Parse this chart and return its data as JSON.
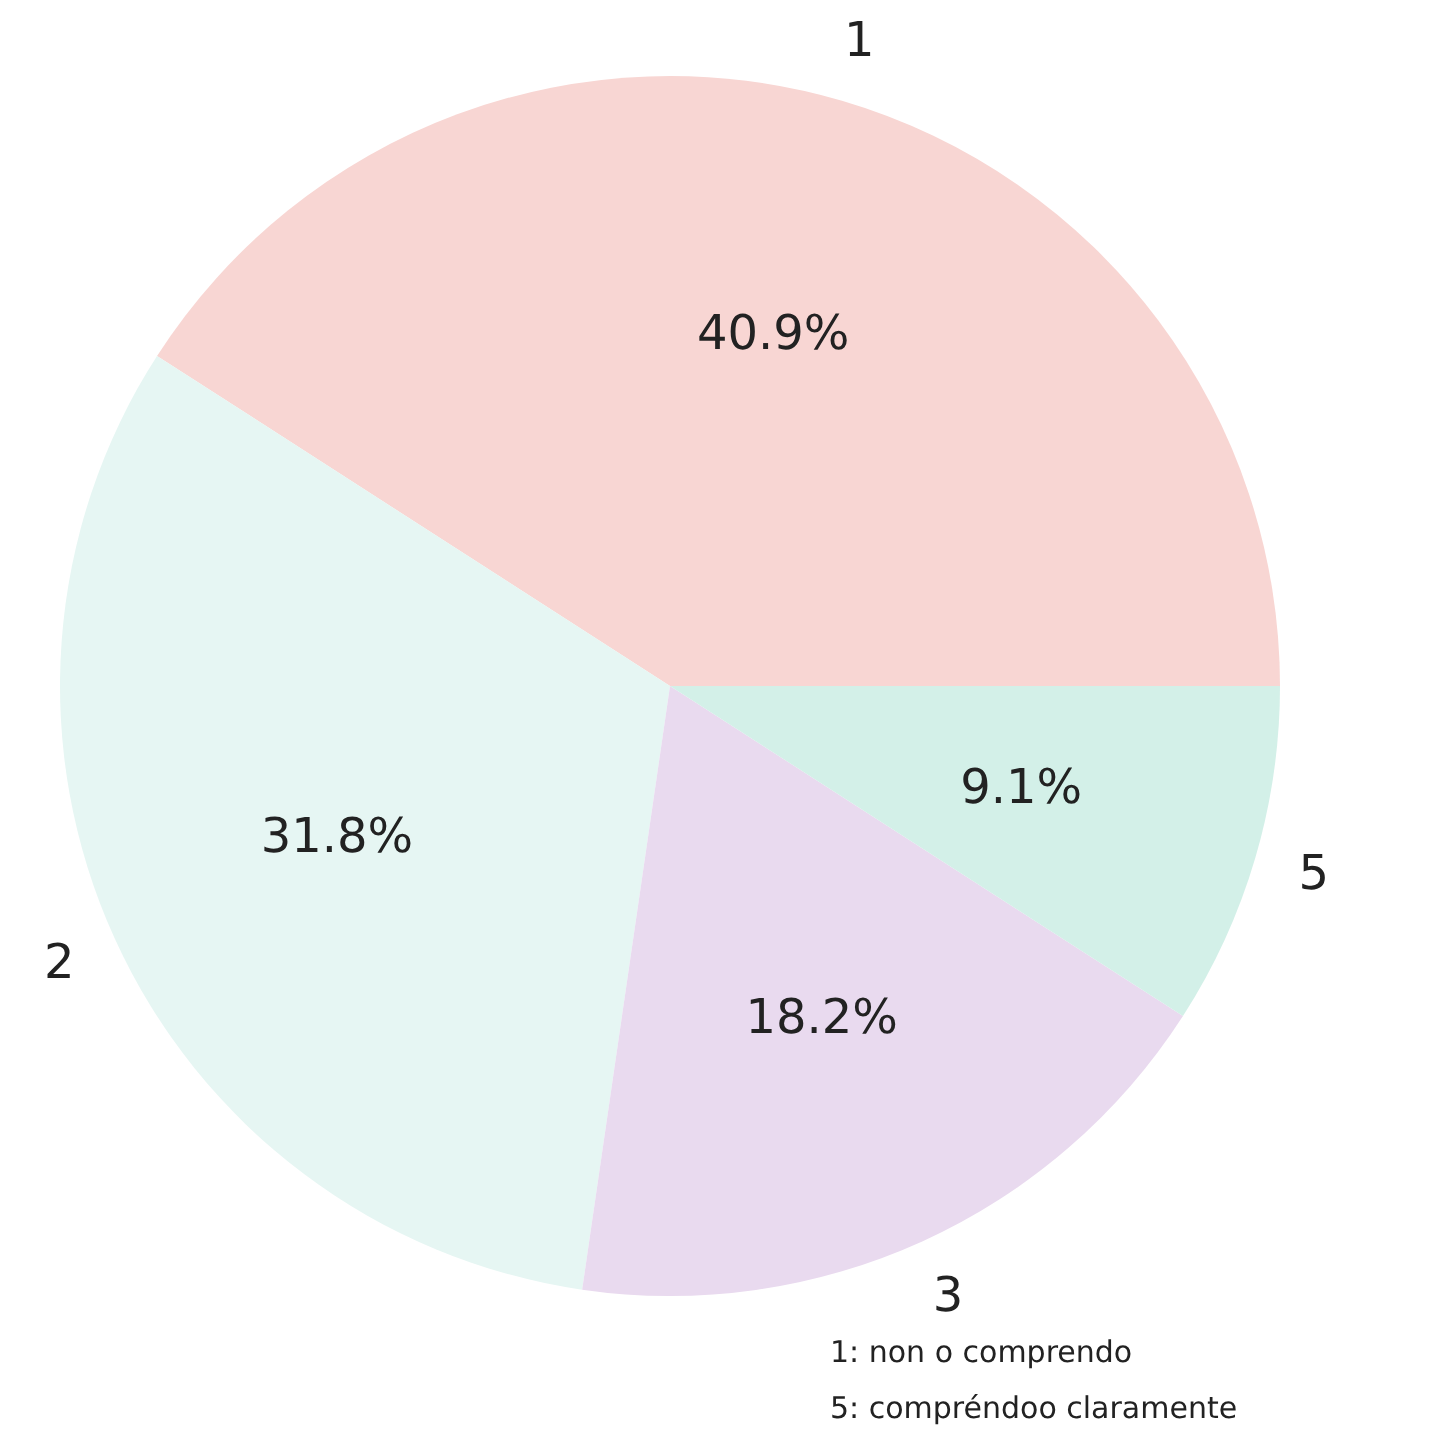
{
  "chart_data": {
    "type": "pie",
    "categories": [
      "1",
      "2",
      "3",
      "5"
    ],
    "values": [
      40.9,
      31.8,
      18.2,
      9.1
    ],
    "colors": [
      "#f8d6d3",
      "#e6f6f3",
      "#e9daef",
      "#d3f0e8"
    ],
    "value_labels": [
      "40.9%",
      "31.8%",
      "18.2%",
      "9.1%"
    ],
    "annotations": [
      "1: non o comprendo",
      "5: compréndoo claramente"
    ]
  }
}
